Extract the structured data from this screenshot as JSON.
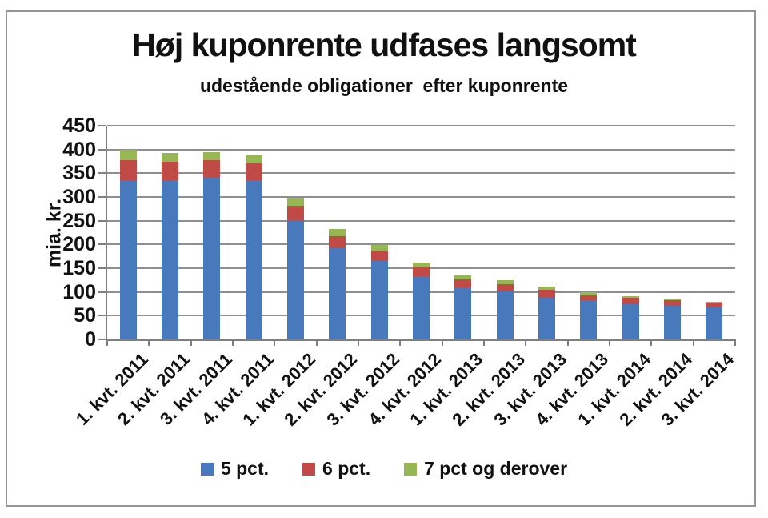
{
  "chart_data": {
    "type": "bar",
    "stacked": true,
    "title": "Høj kuponrente udfases langsomt",
    "subtitle": "udestående obligationer  efter kuponrente",
    "ylabel": "mia. kr.",
    "xlabel": "",
    "ylim": [
      0,
      450
    ],
    "ytick_step": 50,
    "grid": true,
    "legend_position": "bottom",
    "categories": [
      "1. kvt. 2011",
      "2. kvt. 2011",
      "3. kvt. 2011",
      "4. kvt. 2011",
      "1. kvt. 2012",
      "2. kvt. 2012",
      "3. kvt. 2012",
      "4. kvt. 2012",
      "1. kvt. 2013",
      "2. kvt. 2013",
      "3. kvt. 2013",
      "4. kvt. 2013",
      "1. kvt. 2014",
      "2. kvt. 2014",
      "3. kvt. 2014"
    ],
    "series": [
      {
        "name": "5 pct.",
        "color": "#4879BD",
        "values": [
          335,
          336,
          343,
          336,
          251,
          192,
          165,
          133,
          109,
          101,
          87,
          83,
          75,
          71,
          67
        ]
      },
      {
        "name": "6 pct.",
        "color": "#C04A45",
        "values": [
          43,
          38,
          35,
          35,
          30,
          25,
          21,
          18,
          18,
          16,
          17,
          10,
          12,
          11,
          10
        ]
      },
      {
        "name": "7 pct og derover",
        "color": "#97B754",
        "values": [
          22,
          18,
          17,
          17,
          17,
          15,
          13,
          11,
          8,
          8,
          7,
          6,
          4,
          3,
          2
        ]
      }
    ],
    "frame_color": "#949494",
    "grid_color": "#8f8f8f",
    "axis_color": "#7f7f7f"
  }
}
